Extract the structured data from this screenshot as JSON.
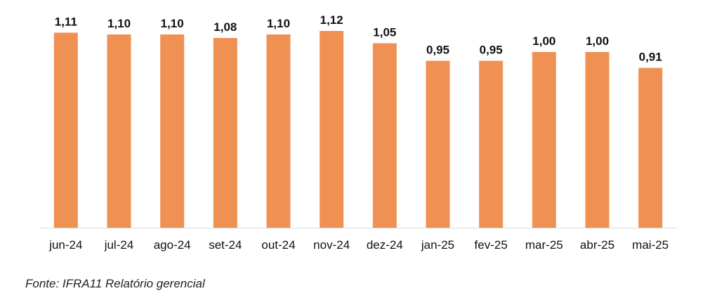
{
  "chart_data": {
    "type": "bar",
    "categories": [
      "jun-24",
      "jul-24",
      "ago-24",
      "set-24",
      "out-24",
      "nov-24",
      "dez-24",
      "jan-25",
      "fev-25",
      "mar-25",
      "abr-25",
      "mai-25"
    ],
    "values": [
      1.11,
      1.1,
      1.1,
      1.08,
      1.1,
      1.12,
      1.05,
      0.95,
      0.95,
      1.0,
      1.0,
      0.91
    ],
    "value_labels": [
      "1,11",
      "1,10",
      "1,10",
      "1,08",
      "1,10",
      "1,12",
      "1,05",
      "0,95",
      "0,95",
      "1,00",
      "1,00",
      "0,91"
    ],
    "title": "",
    "xlabel": "",
    "ylabel": "",
    "ylim": [
      0,
      1.12
    ],
    "grid": false,
    "bar_color": "#F09154",
    "axis_color": "#D9D9D9"
  },
  "source": "Fonte: IFRA11 Relatório gerencial"
}
